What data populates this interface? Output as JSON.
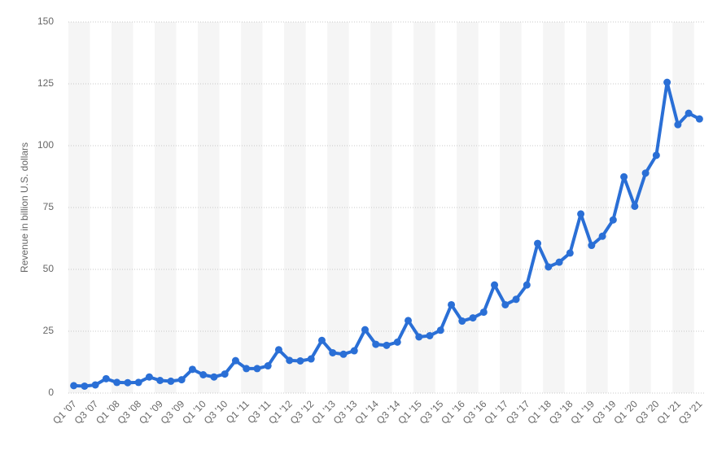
{
  "chart_data": {
    "type": "line",
    "y_label": "Revenue in billion U.S. dollars",
    "categories": [
      "Q1 '07",
      null,
      "Q3 '07",
      null,
      "Q1 '08",
      null,
      "Q3 '08",
      null,
      "Q1 '09",
      null,
      "Q3 '09",
      null,
      "Q1 '10",
      null,
      "Q3 '10",
      null,
      "Q1 '11",
      null,
      "Q3 '11",
      null,
      "Q1 '12",
      null,
      "Q3 '12",
      null,
      "Q1 '13",
      null,
      "Q3 '13",
      null,
      "Q1 '14",
      null,
      "Q3 '14",
      null,
      "Q1 '15",
      null,
      "Q3 '15",
      null,
      "Q1 '16",
      null,
      "Q3 '16",
      null,
      "Q1 '17",
      null,
      "Q3 '17",
      null,
      "Q1 '18",
      null,
      "Q3 '18",
      null,
      "Q1 '19",
      null,
      "Q3 '19",
      null,
      "Q1 '20",
      null,
      "Q3 '20",
      null,
      "Q1 '21",
      null,
      "Q3 '21"
    ],
    "values": [
      3.0,
      2.8,
      3.3,
      5.8,
      4.3,
      4.2,
      4.3,
      6.5,
      5.1,
      4.8,
      5.4,
      9.6,
      7.4,
      6.5,
      7.7,
      13.1,
      9.9,
      9.9,
      11.0,
      17.5,
      13.2,
      13.0,
      13.8,
      21.3,
      16.3,
      15.7,
      17.1,
      25.6,
      19.7,
      19.3,
      20.6,
      29.3,
      22.7,
      23.2,
      25.4,
      35.7,
      29.1,
      30.4,
      32.7,
      43.7,
      35.7,
      37.9,
      43.7,
      60.5,
      51.0,
      52.9,
      56.6,
      72.4,
      59.7,
      63.4,
      70.0,
      87.4,
      75.5,
      88.9,
      96.1,
      125.6,
      108.5,
      113.1,
      110.8
    ],
    "color": "#2a6fd6",
    "ylim": [
      0,
      150
    ],
    "yticks": [
      0,
      25,
      50,
      75,
      100,
      125,
      150
    ],
    "grid": true
  }
}
